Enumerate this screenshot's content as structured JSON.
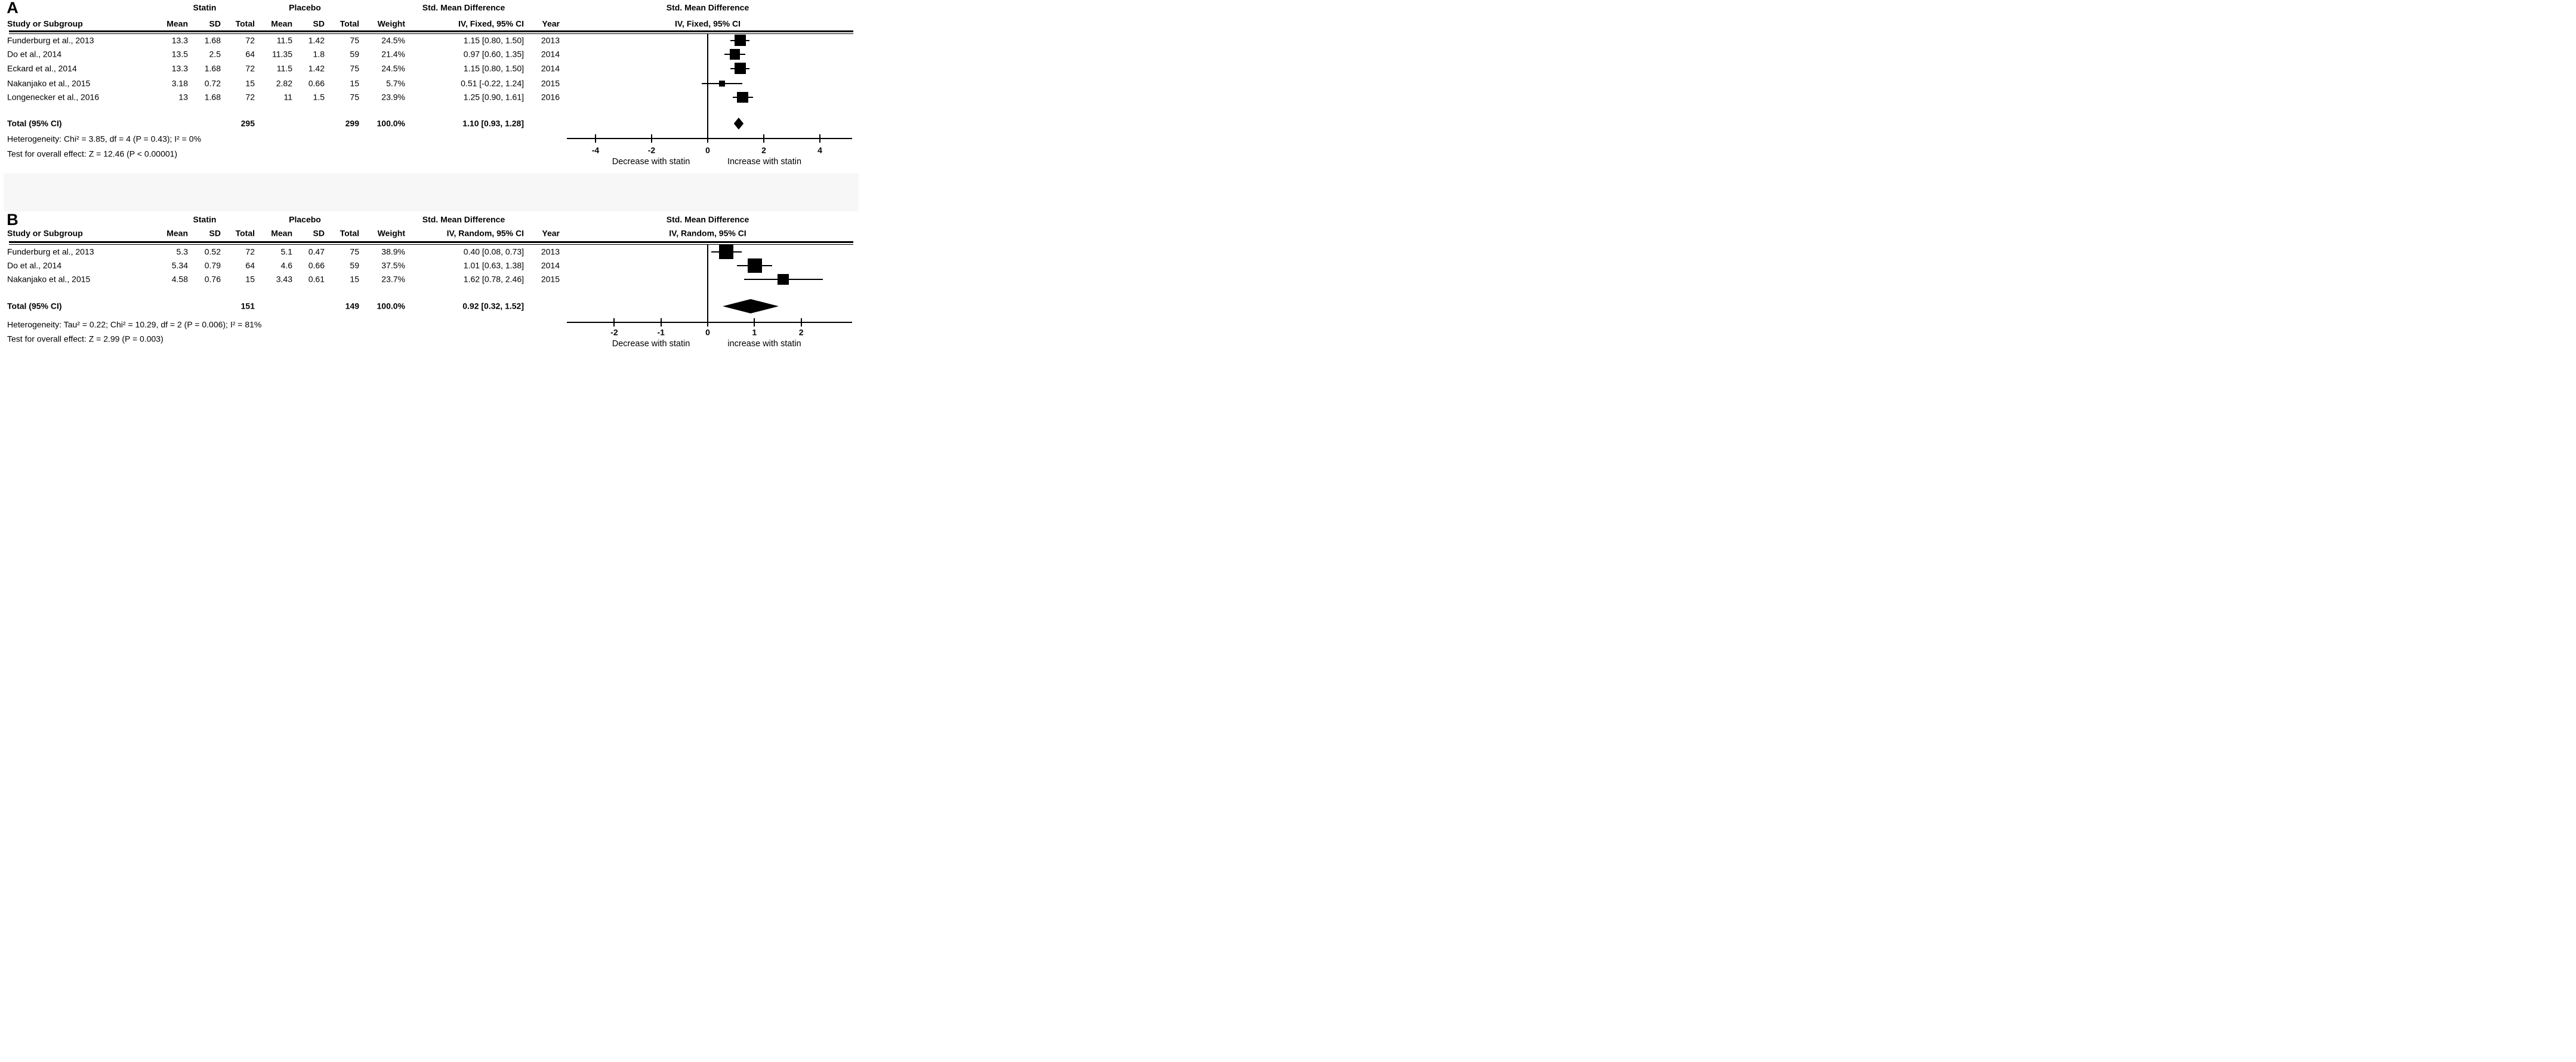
{
  "colors": {
    "background": "#ffffff",
    "text": "#000000",
    "divider_band": "#f7f7f7",
    "marker": "#000000"
  },
  "chart_data": [
    {
      "type": "forest",
      "panel_label": "A",
      "group_headers": [
        "Statin",
        "Placebo"
      ],
      "effect_header": "Std. Mean Difference",
      "effect_subheader": "IV, Fixed, 95% CI",
      "column_headers": [
        "Study or Subgroup",
        "Mean",
        "SD",
        "Total",
        "Mean",
        "SD",
        "Total",
        "Weight",
        "IV, Fixed, 95% CI",
        "Year"
      ],
      "plot_header_line1": "Std. Mean Difference",
      "plot_header_line2": "IV, Fixed, 95% CI",
      "studies": [
        {
          "study": "Funderburg et al., 2013",
          "statin_mean": "13.3",
          "statin_sd": "1.68",
          "statin_total": "72",
          "placebo_mean": "11.5",
          "placebo_sd": "1.42",
          "placebo_total": "75",
          "weight": "24.5%",
          "weight_pct": 24.5,
          "ci_text": "1.15 [0.80, 1.50]",
          "year": "2013",
          "smd": 1.15,
          "ci_low": 0.8,
          "ci_high": 1.5
        },
        {
          "study": "Do et al., 2014",
          "statin_mean": "13.5",
          "statin_sd": "2.5",
          "statin_total": "64",
          "placebo_mean": "11.35",
          "placebo_sd": "1.8",
          "placebo_total": "59",
          "weight": "21.4%",
          "weight_pct": 21.4,
          "ci_text": "0.97 [0.60, 1.35]",
          "year": "2014",
          "smd": 0.97,
          "ci_low": 0.6,
          "ci_high": 1.35
        },
        {
          "study": "Eckard et al., 2014",
          "statin_mean": "13.3",
          "statin_sd": "1.68",
          "statin_total": "72",
          "placebo_mean": "11.5",
          "placebo_sd": "1.42",
          "placebo_total": "75",
          "weight": "24.5%",
          "weight_pct": 24.5,
          "ci_text": "1.15 [0.80, 1.50]",
          "year": "2014",
          "smd": 1.15,
          "ci_low": 0.8,
          "ci_high": 1.5
        },
        {
          "study": "Nakanjako et al., 2015",
          "statin_mean": "3.18",
          "statin_sd": "0.72",
          "statin_total": "15",
          "placebo_mean": "2.82",
          "placebo_sd": "0.66",
          "placebo_total": "15",
          "weight": "5.7%",
          "weight_pct": 5.7,
          "ci_text": "0.51 [-0.22, 1.24]",
          "year": "2015",
          "smd": 0.51,
          "ci_low": -0.22,
          "ci_high": 1.24
        },
        {
          "study": "Longenecker et al., 2016",
          "statin_mean": "13",
          "statin_sd": "1.68",
          "statin_total": "72",
          "placebo_mean": "11",
          "placebo_sd": "1.5",
          "placebo_total": "75",
          "weight": "23.9%",
          "weight_pct": 23.9,
          "ci_text": "1.25 [0.90, 1.61]",
          "year": "2016",
          "smd": 1.25,
          "ci_low": 0.9,
          "ci_high": 1.61
        }
      ],
      "total": {
        "label": "Total (95% CI)",
        "statin_total": "295",
        "placebo_total": "299",
        "weight": "100.0%",
        "ci_text": "1.10 [0.93, 1.28]",
        "smd": 1.1,
        "ci_low": 0.93,
        "ci_high": 1.28
      },
      "heterogeneity": "Heterogeneity: Chi² = 3.85, df = 4 (P = 0.43); I² = 0%",
      "overall_effect": "Test for overall effect: Z = 12.46 (P < 0.00001)",
      "axis": {
        "ticks": [
          -4,
          -2,
          0,
          2,
          4
        ],
        "tick_labels": [
          "-4",
          "-2",
          "0",
          "2",
          "4"
        ],
        "range": [
          -5,
          5.1
        ],
        "caption_left": "Decrease with statin",
        "caption_right": "Increase with statin"
      }
    },
    {
      "type": "forest",
      "panel_label": "B",
      "group_headers": [
        "Statin",
        "Placebo"
      ],
      "effect_header": "Std. Mean Difference",
      "effect_subheader": "IV, Random, 95% CI",
      "column_headers": [
        "Study or Subgroup",
        "Mean",
        "SD",
        "Total",
        "Mean",
        "SD",
        "Total",
        "Weight",
        "IV, Random, 95% CI",
        "Year"
      ],
      "plot_header_line1": "Std. Mean Difference",
      "plot_header_line2": "IV, Random, 95% CI",
      "studies": [
        {
          "study": "Funderburg et al., 2013",
          "statin_mean": "5.3",
          "statin_sd": "0.52",
          "statin_total": "72",
          "placebo_mean": "5.1",
          "placebo_sd": "0.47",
          "placebo_total": "75",
          "weight": "38.9%",
          "weight_pct": 38.9,
          "ci_text": "0.40 [0.08, 0.73]",
          "year": "2013",
          "smd": 0.4,
          "ci_low": 0.08,
          "ci_high": 0.73
        },
        {
          "study": "Do et al., 2014",
          "statin_mean": "5.34",
          "statin_sd": "0.79",
          "statin_total": "64",
          "placebo_mean": "4.6",
          "placebo_sd": "0.66",
          "placebo_total": "59",
          "weight": "37.5%",
          "weight_pct": 37.5,
          "ci_text": "1.01 [0.63, 1.38]",
          "year": "2014",
          "smd": 1.01,
          "ci_low": 0.63,
          "ci_high": 1.38
        },
        {
          "study": "Nakanjako et al., 2015",
          "statin_mean": "4.58",
          "statin_sd": "0.76",
          "statin_total": "15",
          "placebo_mean": "3.43",
          "placebo_sd": "0.61",
          "placebo_total": "15",
          "weight": "23.7%",
          "weight_pct": 23.7,
          "ci_text": "1.62 [0.78, 2.46]",
          "year": "2015",
          "smd": 1.62,
          "ci_low": 0.78,
          "ci_high": 2.46
        }
      ],
      "total": {
        "label": "Total (95% CI)",
        "statin_total": "151",
        "placebo_total": "149",
        "weight": "100.0%",
        "ci_text": "0.92 [0.32, 1.52]",
        "smd": 0.92,
        "ci_low": 0.32,
        "ci_high": 1.52
      },
      "heterogeneity": "Heterogeneity: Tau² = 0.22; Chi² = 10.29, df = 2 (P = 0.006); I² = 81%",
      "overall_effect": "Test for overall effect: Z = 2.99 (P = 0.003)",
      "axis": {
        "ticks": [
          -2,
          -1,
          0,
          1,
          2
        ],
        "tick_labels": [
          "-2",
          "-1",
          "0",
          "1",
          "2"
        ],
        "range": [
          -3.05,
          3.1
        ],
        "caption_left": "Decrease with statin",
        "caption_right": "increase with statin"
      }
    }
  ]
}
